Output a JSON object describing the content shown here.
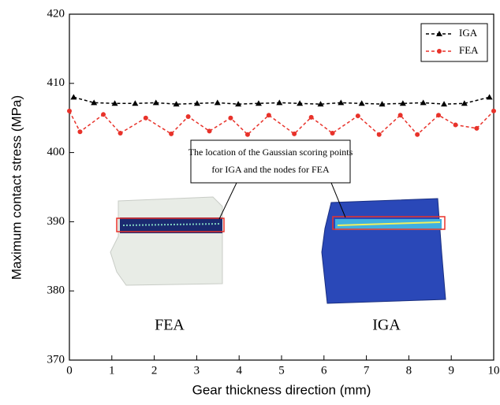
{
  "chart_data": {
    "type": "line",
    "x_label": "Gear thickness direction (mm)",
    "y_label": "Maximum contact stress (MPa)",
    "xlim": [
      0,
      10
    ],
    "xticks": [
      0,
      1,
      2,
      3,
      4,
      5,
      6,
      7,
      8,
      9,
      10
    ],
    "ylim": [
      370,
      420
    ],
    "yticks": [
      370,
      380,
      390,
      400,
      410,
      420
    ],
    "legend": "upper right",
    "series": [
      {
        "name": "IGA",
        "color": "#000000",
        "marker": "triangle",
        "x": [
          0.1,
          0.58,
          1.07,
          1.55,
          2.04,
          2.52,
          3.01,
          3.49,
          3.98,
          4.46,
          4.95,
          5.43,
          5.92,
          6.4,
          6.89,
          7.37,
          7.86,
          8.34,
          8.83,
          9.31,
          9.9
        ],
        "values": [
          408,
          407.2,
          407.1,
          407.1,
          407.2,
          407.0,
          407.1,
          407.2,
          407.0,
          407.1,
          407.2,
          407.1,
          407.0,
          407.2,
          407.1,
          407.0,
          407.1,
          407.2,
          407.0,
          407.1,
          408
        ]
      },
      {
        "name": "FEA",
        "color": "#e8322a",
        "marker": "circle",
        "x": [
          0,
          0.25,
          0.8,
          1.2,
          1.8,
          2.4,
          2.8,
          3.3,
          3.8,
          4.2,
          4.7,
          5.3,
          5.7,
          6.2,
          6.8,
          7.3,
          7.8,
          8.2,
          8.7,
          9.1,
          9.6,
          10
        ],
        "values": [
          406,
          403,
          405.5,
          402.8,
          405,
          402.7,
          405.2,
          403.1,
          405,
          402.6,
          405.4,
          402.7,
          405.1,
          402.8,
          405.3,
          402.6,
          405.4,
          402.6,
          405.4,
          404,
          403.5,
          406
        ]
      }
    ],
    "annotations": [
      {
        "text": "The location of the Gaussian scoring points"
      },
      {
        "text": "for IGA and the nodes for FEA"
      },
      {
        "text": "FEA"
      },
      {
        "text": "IGA"
      }
    ]
  }
}
